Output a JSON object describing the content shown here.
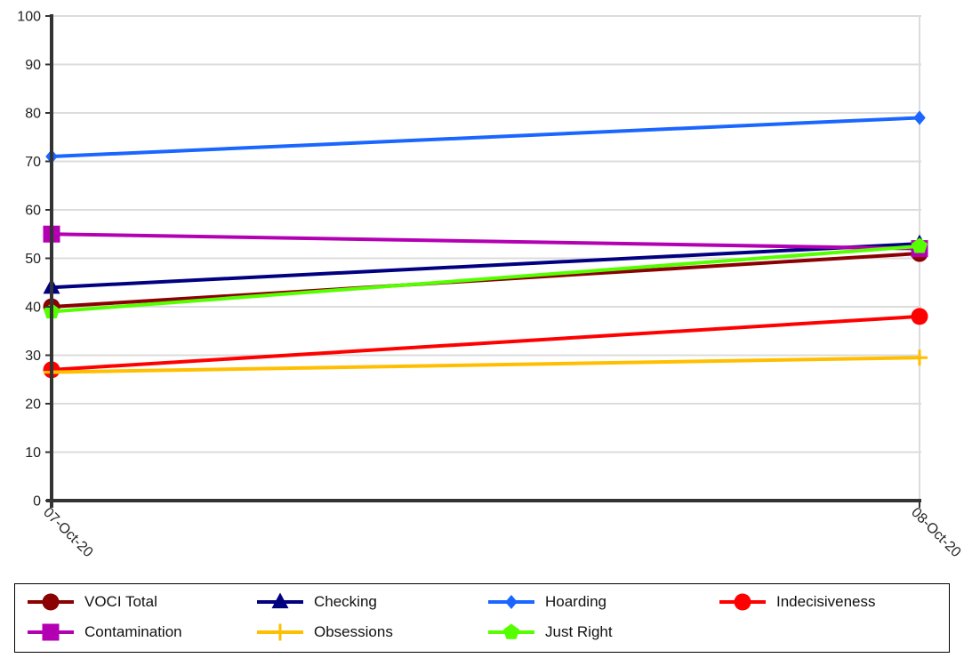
{
  "chart_data": {
    "type": "line",
    "title": "",
    "xlabel": "",
    "ylabel": "",
    "categories": [
      "07-Oct-20",
      "08-Oct-20"
    ],
    "ylim": [
      0,
      100
    ],
    "yticks": [
      0,
      10,
      20,
      30,
      40,
      50,
      60,
      70,
      80,
      90,
      100
    ],
    "grid": true,
    "legend_position": "bottom",
    "series": [
      {
        "name": "VOCI Total",
        "values": [
          40,
          51
        ],
        "color": "#8b0000",
        "marker": "circle"
      },
      {
        "name": "Checking",
        "values": [
          44,
          53
        ],
        "color": "#000080",
        "marker": "triangle"
      },
      {
        "name": "Hoarding",
        "values": [
          71,
          79
        ],
        "color": "#1a66ff",
        "marker": "diamond"
      },
      {
        "name": "Indecisiveness",
        "values": [
          27,
          38
        ],
        "color": "#ff0000",
        "marker": "circle"
      },
      {
        "name": "Contamination",
        "values": [
          55,
          52
        ],
        "color": "#b300b3",
        "marker": "square"
      },
      {
        "name": "Obsessions",
        "values": [
          26.5,
          29.5
        ],
        "color": "#ffbf00",
        "marker": "plus"
      },
      {
        "name": "Just Right",
        "values": [
          39,
          52.5
        ],
        "color": "#55ff00",
        "marker": "pentagon"
      }
    ]
  }
}
